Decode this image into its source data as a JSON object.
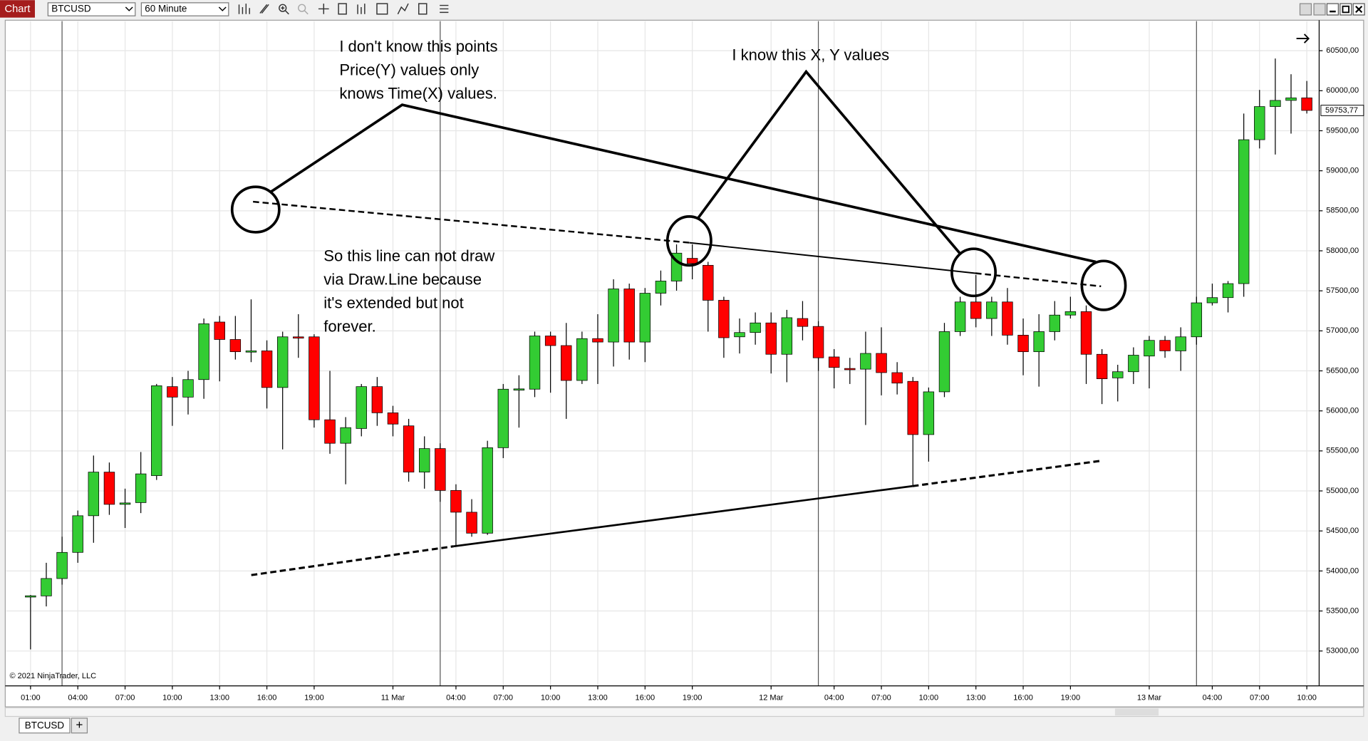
{
  "toolbar": {
    "tab": "Chart",
    "instrument": "BTCUSD",
    "interval": "60 Minute"
  },
  "chart_data": {
    "type": "candlestick",
    "categories": [
      "01:00",
      null,
      null,
      "04:00",
      null,
      null,
      "07:00",
      null,
      null,
      "10:00",
      null,
      null,
      "13:00",
      null,
      null,
      "16:00",
      null,
      null,
      "19:00",
      null,
      null,
      null,
      null,
      "11 Mar",
      null,
      null,
      null,
      "04:00",
      null,
      null,
      "07:00",
      null,
      null,
      "10:00",
      null,
      null,
      "13:00",
      null,
      null,
      "16:00",
      null,
      null,
      "19:00",
      null,
      null,
      null,
      null,
      "12 Mar",
      null,
      null,
      null,
      "04:00",
      null,
      null,
      "07:00",
      null,
      null,
      "10:00",
      null,
      null,
      "13:00",
      null,
      null,
      "16:00",
      null,
      null,
      "19:00",
      null,
      null,
      null,
      null,
      "13 Mar",
      null,
      null,
      null,
      "04:00",
      null,
      null,
      "07:00",
      null,
      null,
      "10:00"
    ],
    "open": [
      53680,
      53688,
      53905,
      54232,
      54690,
      55235,
      54832,
      54854,
      55191,
      56303,
      56172,
      56391,
      57110,
      56892,
      56740,
      56750,
      56292,
      56925,
      56925,
      55889,
      55595,
      55780,
      56303,
      55976,
      55813,
      55235,
      55529,
      55006,
      54734,
      54472,
      55540,
      56270,
      56271,
      56936,
      56816,
      56380,
      56903,
      56860,
      57524,
      56860,
      57470,
      57622,
      57906,
      57819,
      57382,
      56925,
      56979,
      57099,
      56707,
      57154,
      57055,
      56674,
      56530,
      56521,
      56718,
      56478,
      56369,
      55704,
      56238,
      56990,
      57361,
      57154,
      57361,
      56946,
      56739,
      56990,
      57197,
      57240,
      56707,
      56412,
      56489,
      56685,
      56881,
      56750,
      56925,
      57350,
      57415,
      57590,
      59388,
      59802,
      59879,
      59911
    ],
    "high": [
      53700,
      54102,
      54428,
      54755,
      55442,
      55355,
      55028,
      55486,
      56336,
      56423,
      56500,
      57154,
      57186,
      57186,
      57393,
      56881,
      56990,
      57208,
      56957,
      56500,
      55922,
      56336,
      56423,
      56063,
      55900,
      55682,
      55595,
      55083,
      54897,
      55627,
      56336,
      56445,
      56990,
      56990,
      57099,
      56990,
      57208,
      57644,
      57590,
      57535,
      57753,
      58080,
      58080,
      57862,
      57426,
      57154,
      57230,
      57230,
      57262,
      57372,
      57121,
      56772,
      56663,
      56990,
      57044,
      56609,
      56423,
      56292,
      57099,
      57426,
      57698,
      57426,
      57535,
      57154,
      57208,
      57372,
      57426,
      57317,
      56772,
      56576,
      56794,
      56936,
      56936,
      57044,
      57426,
      57590,
      57622,
      59715,
      60010,
      60402,
      60206,
      60122
    ],
    "low": [
      53020,
      53557,
      53829,
      54102,
      54352,
      54701,
      54537,
      54723,
      55137,
      55813,
      55955,
      56151,
      56369,
      56641,
      56609,
      56030,
      55519,
      56663,
      55791,
      55464,
      55083,
      55682,
      55813,
      55682,
      55116,
      55028,
      54864,
      54320,
      54428,
      54450,
      55410,
      55791,
      56172,
      56227,
      55900,
      56336,
      56336,
      56554,
      56641,
      56609,
      57317,
      57502,
      57644,
      56990,
      56663,
      56717,
      56827,
      56467,
      56358,
      56881,
      56500,
      56281,
      56336,
      55824,
      56194,
      56205,
      55061,
      55366,
      56172,
      56936,
      57044,
      56936,
      56827,
      56445,
      56303,
      56881,
      57154,
      56336,
      56085,
      56118,
      56336,
      56281,
      56663,
      56500,
      56827,
      57317,
      57230,
      57426,
      59279,
      59203,
      59464,
      59715
    ],
    "close": [
      53690,
      53906,
      54232,
      54690,
      55235,
      54832,
      54850,
      55213,
      56314,
      56172,
      56391,
      57088,
      56892,
      56739,
      56750,
      56292,
      56925,
      56920,
      55889,
      55595,
      55791,
      56303,
      55976,
      55835,
      55235,
      55529,
      55006,
      54734,
      54472,
      55540,
      56271,
      56275,
      56936,
      56816,
      56380,
      56903,
      56860,
      57524,
      56860,
      57470,
      57622,
      57971,
      57841,
      57382,
      56914,
      56979,
      57099,
      56707,
      57164,
      57055,
      56663,
      56543,
      56520,
      56718,
      56478,
      56347,
      55704,
      56238,
      56990,
      57361,
      57154,
      57361,
      56946,
      56739,
      56990,
      57197,
      57240,
      56707,
      56401,
      56489,
      56696,
      56881,
      56750,
      56925,
      57350,
      57415,
      57590,
      59388,
      59802,
      59879,
      59911,
      59753.77
    ],
    "up_color": "#33cc33",
    "down_color": "#ff0000",
    "ylim": [
      52575,
      60870
    ],
    "yticks": [
      {
        "value": 53000,
        "label": "53000,00"
      },
      {
        "value": 53500,
        "label": "53500,00"
      },
      {
        "value": 54000,
        "label": "54000,00"
      },
      {
        "value": 54500,
        "label": "54500,00"
      },
      {
        "value": 55000,
        "label": "55000,00"
      },
      {
        "value": 55500,
        "label": "55500,00"
      },
      {
        "value": 56000,
        "label": "56000,00"
      },
      {
        "value": 56500,
        "label": "56500,00"
      },
      {
        "value": 57000,
        "label": "57000,00"
      },
      {
        "value": 57500,
        "label": "57500,00"
      },
      {
        "value": 58000,
        "label": "58000,00"
      },
      {
        "value": 58500,
        "label": "58500,00"
      },
      {
        "value": 59000,
        "label": "59000,00"
      },
      {
        "value": 59500,
        "label": "59500,00"
      },
      {
        "value": 60000,
        "label": "60000,00"
      },
      {
        "value": 60500,
        "label": "60500,00"
      }
    ],
    "current_price": {
      "value": 59753.77,
      "label": "59753,77"
    },
    "grid": true
  },
  "annotations": {
    "unknown_point": [
      "I don't know this points",
      "Price(Y) values only",
      "knows Time(X) values."
    ],
    "known_point": "I know this X, Y values",
    "explanation": [
      "So this line can not draw",
      "via Draw.Line because",
      "it's extended but not",
      "forever."
    ]
  },
  "copyright": "© 2021 NinjaTrader, LLC",
  "tabs": [
    "BTCUSD",
    "+"
  ]
}
